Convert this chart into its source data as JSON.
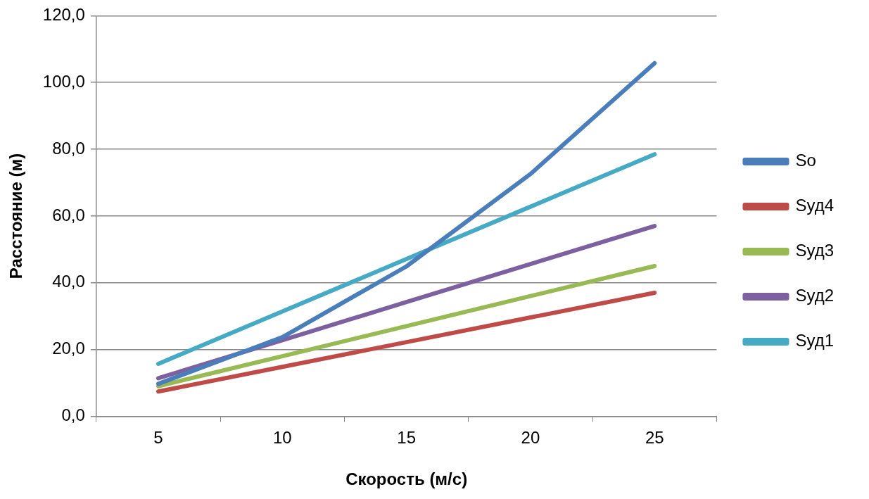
{
  "chart_data": {
    "type": "line",
    "xlabel": "Скорость (м/с)",
    "ylabel": "Расстояние (м)",
    "categories": [
      "5",
      "10",
      "15",
      "20",
      "25"
    ],
    "series": [
      {
        "name": "So",
        "color": "#4a7ebb",
        "values": [
          9.7,
          23.7,
          44.9,
          72.6,
          105.8
        ]
      },
      {
        "name": "Sуд4",
        "color": "#be4b48",
        "values": [
          7.4,
          14.8,
          22.2,
          29.6,
          37.0
        ]
      },
      {
        "name": "Sуд3",
        "color": "#98b954",
        "values": [
          9.0,
          18.0,
          27.0,
          36.0,
          45.0
        ]
      },
      {
        "name": "Sуд2",
        "color": "#7d60a0",
        "values": [
          11.4,
          22.8,
          34.2,
          45.6,
          57.0
        ]
      },
      {
        "name": "Sуд1",
        "color": "#46aac5",
        "values": [
          15.7,
          31.4,
          47.1,
          62.8,
          78.5
        ]
      }
    ],
    "ylim": [
      0,
      120
    ],
    "yticks": [
      {
        "value": 0,
        "label": "0,0"
      },
      {
        "value": 20,
        "label": "20,0"
      },
      {
        "value": 40,
        "label": "40,0"
      },
      {
        "value": 60,
        "label": "60,0"
      },
      {
        "value": 80,
        "label": "80,0"
      },
      {
        "value": 100,
        "label": "100,0"
      },
      {
        "value": 120,
        "label": "120,0"
      }
    ],
    "grid": "y",
    "legend": "right",
    "marker": "none",
    "line_style": "solid"
  }
}
